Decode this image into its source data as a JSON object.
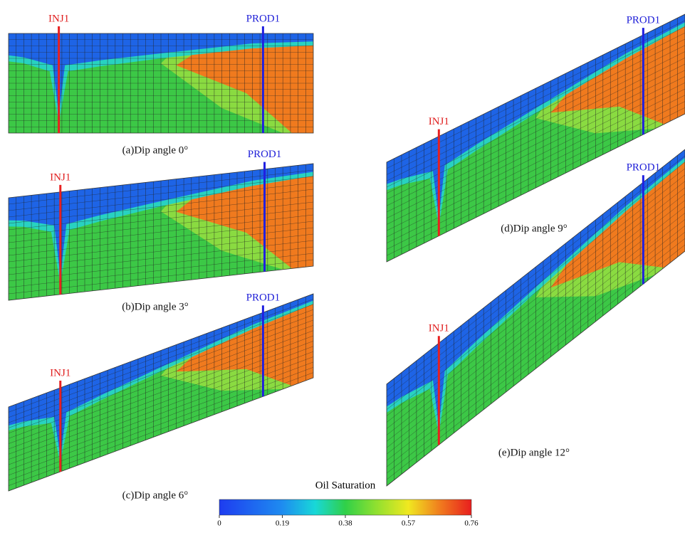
{
  "panels": [
    {
      "caption": "(a)Dip angle 0°",
      "injector": "INJ1",
      "producer": "PROD1"
    },
    {
      "caption": "(b)Dip angle 3°",
      "injector": "INJ1",
      "producer": "PROD1"
    },
    {
      "caption": "(c)Dip angle 6°",
      "injector": "INJ1",
      "producer": "PROD1"
    },
    {
      "caption": "(d)Dip angle 9°",
      "injector": "INJ1",
      "producer": "PROD1"
    },
    {
      "caption": "(e)Dip angle 12°",
      "injector": "INJ1",
      "producer": "PROD1"
    }
  ],
  "colorbar": {
    "title": "Oil Saturation",
    "lim": [
      0,
      0.76
    ],
    "ticks": [
      0,
      0.19,
      0.38,
      0.57,
      0.76
    ]
  }
}
